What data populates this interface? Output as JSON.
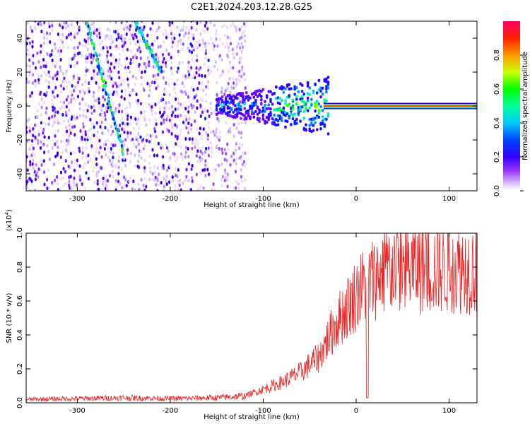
{
  "figure_title": "C2E1.2024.203.12.28.G25",
  "chart_data": [
    {
      "type": "heatmap",
      "xlabel": "Height of straight line (km)",
      "ylabel": "Frequency (Hz)",
      "xlim": [
        -355,
        130
      ],
      "ylim": [
        -50,
        50
      ],
      "x_ticks": [
        -300,
        -200,
        -100,
        0,
        100
      ],
      "x_tick_labels": [
        "-300",
        "-200",
        "-100",
        "0",
        "100"
      ],
      "y_ticks": [
        -40,
        -20,
        0,
        20,
        40
      ],
      "y_tick_labels": [
        "-40",
        "-20",
        "0",
        "20",
        "40"
      ],
      "colorbar": {
        "label": "Normalized spectral amplitude",
        "range": [
          0,
          1
        ],
        "ticks": [
          0,
          0.2,
          0.4,
          0.6,
          0.8
        ],
        "tick_labels": [
          "0.0",
          "0.2",
          "0.4",
          "0.6",
          "0.8"
        ],
        "colors": [
          "#ffffff",
          "#cc99ff",
          "#6600ff",
          "#0000ff",
          "#00ffff",
          "#00ff00",
          "#ffff00",
          "#ff8000",
          "#ff0000",
          "#ff0080"
        ]
      },
      "features": {
        "noise_region_x": [
          -355,
          -120
        ],
        "broadband_region_x": [
          -150,
          -30
        ],
        "tone_region_x": [
          -35,
          130
        ],
        "tone_frequency": 0,
        "diagonal_tracks": [
          {
            "x_start": -290,
            "y_start": 50,
            "x_end": -250,
            "y_end": -28
          },
          {
            "x_start": -238,
            "y_start": 50,
            "x_end": -210,
            "y_end": 20
          }
        ]
      },
      "grid": false
    },
    {
      "type": "line",
      "xlabel": "Height of straight line (km)",
      "ylabel": "SNR (10 * v/v)",
      "y_multiplier": "(x10",
      "y_multiplier_exp": "4",
      "y_multiplier_close": ")",
      "xlim": [
        -355,
        130
      ],
      "ylim": [
        0,
        1.0
      ],
      "x_ticks": [
        -300,
        -200,
        -100,
        0,
        100
      ],
      "x_tick_labels": [
        "-300",
        "-200",
        "-100",
        "0",
        "100"
      ],
      "y_ticks": [
        0,
        0.2,
        0.4,
        0.6,
        0.8,
        1.0
      ],
      "y_tick_labels": [
        "0.0",
        "0.2",
        "0.4",
        "0.6",
        "0.8",
        "1.0"
      ],
      "series": [
        {
          "color": "#ee2222",
          "envelope": {
            "x": [
              -355,
              -300,
              -250,
              -200,
              -150,
              -120,
              -100,
              -80,
              -60,
              -40,
              -30,
              -20,
              -10,
              0,
              10,
              20,
              30,
              40,
              60,
              80,
              100,
              130
            ],
            "y": [
              0.02,
              0.025,
              0.03,
              0.025,
              0.03,
              0.04,
              0.08,
              0.12,
              0.18,
              0.27,
              0.38,
              0.48,
              0.56,
              0.64,
              0.7,
              0.74,
              0.78,
              0.8,
              0.8,
              0.79,
              0.8,
              0.79
            ]
          },
          "dips": [
            {
              "x": 12,
              "y": 0.03
            }
          ]
        }
      ],
      "grid": false
    }
  ]
}
